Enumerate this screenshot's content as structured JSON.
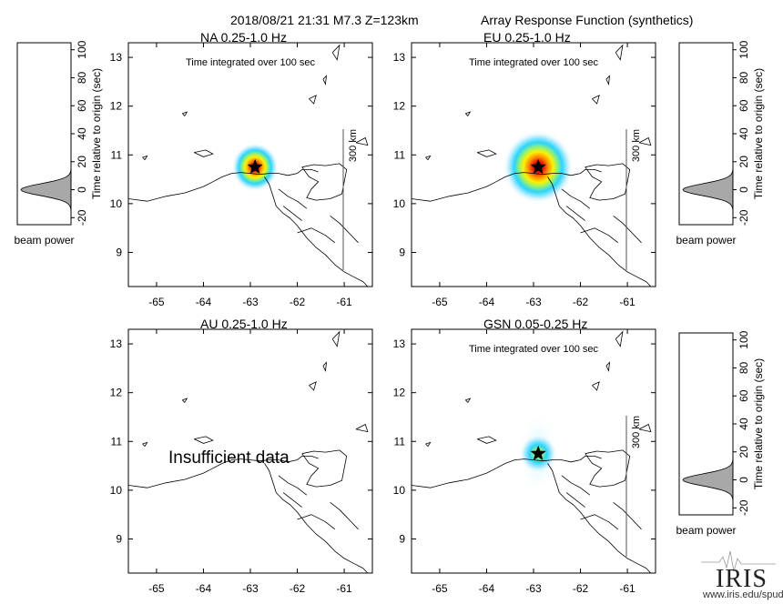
{
  "header": {
    "event": "2018/08/21 21:31  M7.3  Z=123km",
    "product": "Array Response Function (synthetics)"
  },
  "colors": {
    "beam_core": "#b00000",
    "beam_mid": "#ff8a00",
    "beam_yellow": "#fff200",
    "beam_outer": "#2ad4ff",
    "beam_halo": "#bfeeff",
    "star": "#000000",
    "trace_fill": "#a8a8a8"
  },
  "chart_data": [
    {
      "type": "heatmap",
      "panel": "NA",
      "title": "NA  0.25-1.0 Hz",
      "subtitle": "Time integrated over 100 sec",
      "xlabel": "",
      "ylabel": "",
      "xlim": [
        -65.6,
        -60.4
      ],
      "ylim": [
        8.3,
        13.3
      ],
      "xticks": [
        -65,
        -64,
        -63,
        -62,
        -61
      ],
      "yticks": [
        9,
        10,
        11,
        12,
        13
      ],
      "epicenter": {
        "lon": -62.9,
        "lat": 10.75
      },
      "beam": {
        "lon": -62.9,
        "lat": 10.75,
        "radius_deg": 0.5,
        "strength": 1.0
      },
      "scale_bar": "300 km",
      "note": ""
    },
    {
      "type": "heatmap",
      "panel": "EU",
      "title": "EU  0.25-1.0 Hz",
      "subtitle": "Time integrated over 100 sec",
      "xlabel": "",
      "ylabel": "",
      "xlim": [
        -65.6,
        -60.4
      ],
      "ylim": [
        8.3,
        13.3
      ],
      "xticks": [
        -65,
        -64,
        -63,
        -62,
        -61
      ],
      "yticks": [
        9,
        10,
        11,
        12,
        13
      ],
      "epicenter": {
        "lon": -62.9,
        "lat": 10.75
      },
      "beam": {
        "lon": -62.9,
        "lat": 10.75,
        "radius_deg": 0.75,
        "strength": 1.0
      },
      "scale_bar": "300 km",
      "note": ""
    },
    {
      "type": "heatmap",
      "panel": "AU",
      "title": "AU  0.25-1.0 Hz",
      "subtitle": "",
      "xlabel": "",
      "ylabel": "",
      "xlim": [
        -65.6,
        -60.4
      ],
      "ylim": [
        8.3,
        13.3
      ],
      "xticks": [
        -65,
        -64,
        -63,
        -62,
        -61
      ],
      "yticks": [
        9,
        10,
        11,
        12,
        13
      ],
      "epicenter": null,
      "beam": null,
      "scale_bar": "",
      "note": "Insufficient data"
    },
    {
      "type": "heatmap",
      "panel": "GSN",
      "title": "GSN  0.05-0.25 Hz",
      "subtitle": "Time integrated over 100 sec",
      "xlabel": "",
      "ylabel": "",
      "xlim": [
        -65.6,
        -60.4
      ],
      "ylim": [
        8.3,
        13.3
      ],
      "xticks": [
        -65,
        -64,
        -63,
        -62,
        -61
      ],
      "yticks": [
        9,
        10,
        11,
        12,
        13
      ],
      "epicenter": {
        "lon": -62.9,
        "lat": 10.75
      },
      "beam": {
        "lon": -62.9,
        "lat": 10.75,
        "radius_deg": 0.4,
        "strength": 0.55
      },
      "scale_bar": "300 km",
      "note": ""
    },
    {
      "type": "area",
      "panel": "NA beam power",
      "ylabel": "Time relative to origin (sec)",
      "xlabel": "beam power",
      "ylim": [
        -25,
        105
      ],
      "yticks": [
        -20,
        0,
        20,
        40,
        60,
        80,
        100
      ],
      "peak_time": 0,
      "halfwidth": 6
    },
    {
      "type": "area",
      "panel": "EU beam power",
      "ylabel": "Time relative to origin (sec)",
      "xlabel": "beam power",
      "ylim": [
        -25,
        105
      ],
      "yticks": [
        -20,
        0,
        20,
        40,
        60,
        80,
        100
      ],
      "peak_time": 0,
      "halfwidth": 6
    },
    {
      "type": "area",
      "panel": "GSN beam power",
      "ylabel": "Time relative to origin (sec)",
      "xlabel": "beam power",
      "ylim": [
        -25,
        105
      ],
      "yticks": [
        -20,
        0,
        20,
        40,
        60,
        80,
        100
      ],
      "peak_time": 0,
      "halfwidth": 6
    }
  ],
  "logo": {
    "name": "IRIS",
    "url": "www.iris.edu/spud"
  }
}
